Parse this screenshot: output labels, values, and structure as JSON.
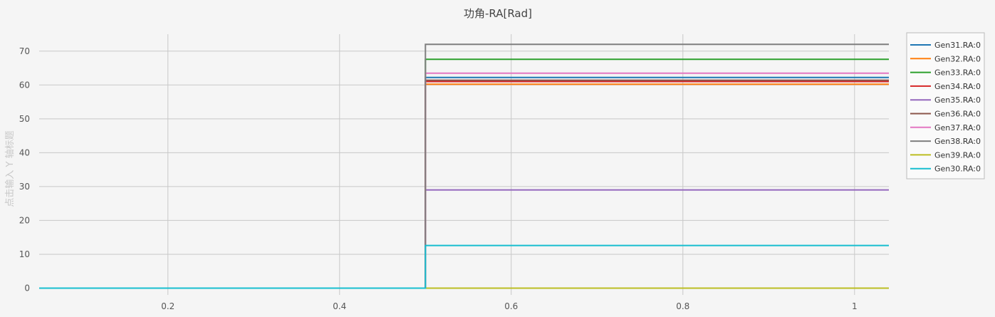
{
  "chart_data": {
    "type": "line",
    "title": "功角-RA[Rad]",
    "ylabel": "点击输入 Y 轴标题",
    "xlabel": "",
    "xlim": [
      0.05,
      1.04
    ],
    "ylim": [
      -2,
      75
    ],
    "x_ticks": [
      0.2,
      0.4,
      0.6,
      0.8,
      1.0
    ],
    "x_tick_labels": [
      "0.2",
      "0.4",
      "0.6",
      "0.8",
      "1"
    ],
    "y_ticks": [
      0,
      10,
      20,
      30,
      40,
      50,
      60,
      70
    ],
    "y_tick_labels": [
      "0",
      "10",
      "20",
      "30",
      "40",
      "50",
      "60",
      "70"
    ],
    "grid": true,
    "legend_position": "top-right",
    "step_x": 0.5,
    "series": [
      {
        "name": "Gen31.RA:0",
        "color": "#1f77b4",
        "x": [
          0.05,
          0.5,
          0.5,
          1.04
        ],
        "values": [
          0,
          0,
          62.2,
          62.2
        ]
      },
      {
        "name": "Gen32.RA:0",
        "color": "#ff7f0e",
        "x": [
          0.05,
          0.5,
          0.5,
          1.04
        ],
        "values": [
          0,
          0,
          60.2,
          60.2
        ]
      },
      {
        "name": "Gen33.RA:0",
        "color": "#2ca02c",
        "x": [
          0.05,
          0.5,
          0.5,
          1.04
        ],
        "values": [
          0,
          0,
          67.6,
          67.6
        ]
      },
      {
        "name": "Gen34.RA:0",
        "color": "#d62728",
        "x": [
          0.05,
          0.5,
          0.5,
          1.04
        ],
        "values": [
          0,
          0,
          61.0,
          61.0
        ]
      },
      {
        "name": "Gen35.RA:0",
        "color": "#9467bd",
        "x": [
          0.05,
          0.5,
          0.5,
          1.04
        ],
        "values": [
          0,
          0,
          29.0,
          29.0
        ]
      },
      {
        "name": "Gen36.RA:0",
        "color": "#8c564b",
        "x": [
          0.05,
          0.5,
          0.5,
          1.04
        ],
        "values": [
          0,
          0,
          61.4,
          61.4
        ]
      },
      {
        "name": "Gen37.RA:0",
        "color": "#e377c2",
        "x": [
          0.05,
          0.5,
          0.5,
          1.04
        ],
        "values": [
          0,
          0,
          63.5,
          63.5
        ]
      },
      {
        "name": "Gen38.RA:0",
        "color": "#7f7f7f",
        "x": [
          0.05,
          0.5,
          0.5,
          1.04
        ],
        "values": [
          0,
          0,
          72.0,
          72.0
        ]
      },
      {
        "name": "Gen39.RA:0",
        "color": "#bcbd22",
        "x": [
          0.05,
          0.5,
          0.5,
          1.04
        ],
        "values": [
          0,
          0,
          0,
          0
        ]
      },
      {
        "name": "Gen30.RA:0",
        "color": "#17becf",
        "x": [
          0.05,
          0.5,
          0.5,
          1.04
        ],
        "values": [
          0,
          0,
          12.6,
          12.6
        ]
      }
    ]
  }
}
